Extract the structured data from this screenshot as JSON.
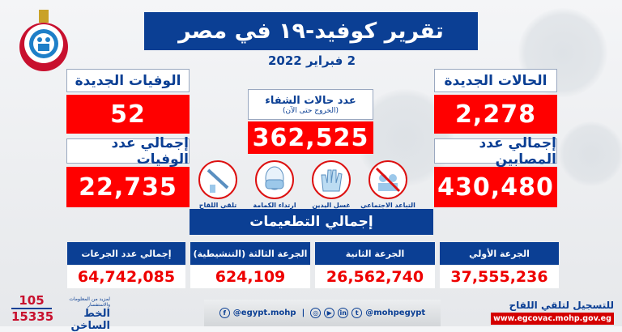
{
  "title": "تقرير كوفيد-١٩ في مصر",
  "date": "2 فبراير 2022",
  "logo_text": "وزارة الصحة والسكان - Ministry of Health & Population",
  "new_cases": {
    "label": "الحالات الجديدة",
    "value": "2,278"
  },
  "total_cases": {
    "label": "إجمالي عدد المصابين",
    "value": "430,480"
  },
  "new_deaths": {
    "label": "الوفيات الجديدة",
    "value": "52"
  },
  "total_deaths": {
    "label": "إجمالي عدد الوفيات",
    "value": "22,735"
  },
  "recovered": {
    "label": "عدد حالات الشفاء",
    "sublabel": "(الخروج حتى الآن)",
    "value": "362,525"
  },
  "precautions": [
    {
      "icon": "no-crowd-icon",
      "label": "التباعد الاجتماعي"
    },
    {
      "icon": "hand-wash-icon",
      "label": "غسل اليدين"
    },
    {
      "icon": "face-mask-icon",
      "label": "ارتداء الكمامة"
    },
    {
      "icon": "vaccine-syringe-icon",
      "label": "تلقي اللقاح"
    }
  ],
  "vaccinations": {
    "title": "إجمالي التطعيمات",
    "items": [
      {
        "label": "الجرعة الأولي",
        "value": "37,555,236"
      },
      {
        "label": "الجرعة الثانية",
        "value": "26,562,740"
      },
      {
        "label": "الجرعة الثالثة (التنشيطية)",
        "value": "624,109"
      },
      {
        "label": "إجمالي عدد الجرعات",
        "value": "64,742,085"
      }
    ]
  },
  "hotline": {
    "num1": "105",
    "num2": "15335",
    "caption": "لمزيد من المعلومات والاستفسار",
    "label": "الخط الساخن"
  },
  "social": {
    "facebook": "@egypt.mohp",
    "others": "@mohpegypt"
  },
  "registration": {
    "label": "للتسجيل لتلقي اللقاح",
    "url": "www.egcovac.mohp.gov.eg"
  },
  "colors": {
    "blue": "#0b3f94",
    "red": "#ff0000"
  }
}
